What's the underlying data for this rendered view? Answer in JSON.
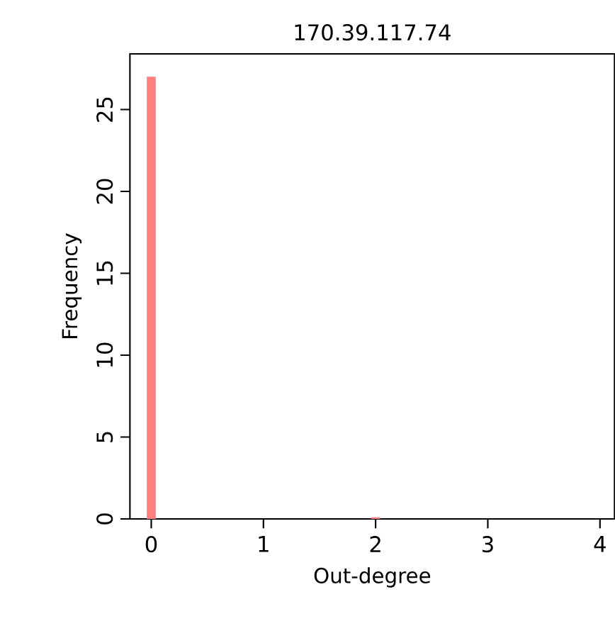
{
  "chart_data": {
    "type": "histogram",
    "title": "170.39.117.74",
    "xlabel": "Out-degree",
    "ylabel": "Frequency",
    "bins": [
      -0.04,
      0.04,
      1.96,
      2.04
    ],
    "values": [
      27,
      0,
      0.1
    ],
    "color": "#ff8080",
    "xlim": [
      -0.19,
      4.13
    ],
    "ylim": [
      0,
      28.4
    ],
    "xticks": [
      0,
      1,
      2,
      3,
      4
    ],
    "yticks": [
      0,
      5,
      10,
      15,
      20,
      25
    ],
    "grid": false
  }
}
